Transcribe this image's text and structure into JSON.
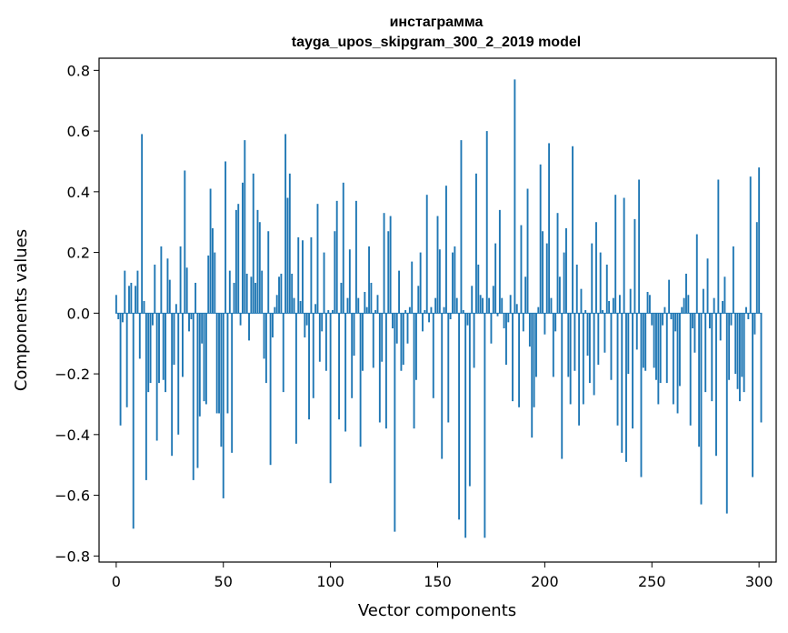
{
  "chart_data": {
    "type": "bar",
    "title": "инстаграмма",
    "subtitle": "tayga_upos_skipgram_300_2_2019 model",
    "xlabel": "Vector components",
    "ylabel": "Components values",
    "xlim": [
      -8,
      308
    ],
    "ylim": [
      -0.82,
      0.84
    ],
    "xticks": [
      0,
      50,
      100,
      150,
      200,
      250,
      300
    ],
    "xtick_labels": [
      "0",
      "50",
      "100",
      "150",
      "200",
      "250",
      "300"
    ],
    "yticks": [
      0.8,
      0.6,
      0.4,
      0.2,
      0.0,
      -0.2,
      -0.4,
      -0.6,
      -0.8
    ],
    "ytick_labels": [
      "0.8",
      "0.6",
      "0.4",
      "0.2",
      "0.0",
      "−0.2",
      "−0.4",
      "−0.6",
      "−0.8"
    ],
    "bar_color": "#1f77b4",
    "values": [
      0.06,
      -0.02,
      -0.37,
      -0.03,
      0.14,
      -0.31,
      0.09,
      0.1,
      -0.71,
      0.09,
      0.14,
      -0.15,
      0.59,
      0.04,
      -0.55,
      -0.26,
      -0.23,
      -0.04,
      0.16,
      -0.42,
      -0.23,
      0.22,
      -0.22,
      -0.26,
      0.18,
      0.11,
      -0.47,
      -0.17,
      0.03,
      -0.4,
      0.22,
      -0.21,
      0.47,
      0.15,
      -0.06,
      -0.02,
      -0.55,
      0.1,
      -0.51,
      -0.34,
      -0.1,
      -0.29,
      -0.3,
      0.19,
      0.41,
      0.28,
      0.2,
      -0.33,
      -0.33,
      -0.44,
      -0.61,
      0.5,
      -0.33,
      0.14,
      -0.46,
      0.1,
      0.34,
      0.36,
      -0.04,
      0.43,
      0.57,
      0.13,
      -0.09,
      0.12,
      0.46,
      0.1,
      0.34,
      0.3,
      0.14,
      -0.15,
      -0.23,
      0.27,
      -0.5,
      -0.08,
      0.02,
      0.06,
      0.12,
      0.13,
      -0.26,
      0.59,
      0.38,
      0.46,
      0.13,
      0.05,
      -0.43,
      0.25,
      0.04,
      0.24,
      -0.08,
      -0.04,
      -0.35,
      0.25,
      -0.28,
      0.03,
      0.36,
      -0.16,
      -0.06,
      0.2,
      -0.19,
      0.01,
      -0.56,
      0.01,
      0.27,
      0.37,
      -0.35,
      0.1,
      0.43,
      -0.39,
      0.05,
      0.21,
      -0.28,
      -0.14,
      0.37,
      0.05,
      -0.44,
      -0.19,
      0.07,
      0.02,
      0.22,
      0.1,
      -0.18,
      0.01,
      0.06,
      -0.36,
      -0.16,
      0.33,
      -0.38,
      0.27,
      0.32,
      -0.05,
      -0.72,
      -0.1,
      0.14,
      -0.19,
      -0.17,
      0.01,
      -0.1,
      0.02,
      0.17,
      -0.38,
      -0.22,
      0.09,
      0.2,
      -0.06,
      0.01,
      0.39,
      -0.03,
      0.02,
      -0.28,
      0.05,
      0.32,
      0.21,
      -0.48,
      0.02,
      0.42,
      -0.36,
      -0.02,
      0.2,
      0.22,
      0.05,
      -0.68,
      0.57,
      0.01,
      -0.74,
      -0.04,
      -0.57,
      0.09,
      -0.18,
      0.46,
      0.16,
      0.06,
      0.05,
      -0.74,
      0.6,
      0.05,
      -0.1,
      0.09,
      0.23,
      -0.01,
      0.34,
      0.05,
      -0.05,
      -0.17,
      -0.03,
      0.06,
      -0.29,
      0.77,
      0.03,
      -0.31,
      0.29,
      -0.06,
      0.12,
      0.41,
      -0.11,
      -0.41,
      -0.31,
      -0.21,
      0.02,
      0.49,
      0.27,
      -0.07,
      0.23,
      0.56,
      0.05,
      -0.21,
      -0.06,
      0.33,
      0.12,
      -0.48,
      0.2,
      0.28,
      -0.21,
      -0.3,
      0.55,
      -0.19,
      0.16,
      -0.37,
      0.08,
      -0.3,
      0.01,
      -0.14,
      -0.23,
      0.23,
      -0.27,
      0.3,
      -0.17,
      0.2,
      0.01,
      -0.13,
      0.16,
      0.04,
      -0.22,
      0.05,
      0.39,
      -0.37,
      0.06,
      -0.46,
      0.38,
      -0.49,
      -0.2,
      0.08,
      -0.38,
      0.31,
      -0.12,
      0.44,
      -0.54,
      -0.18,
      -0.19,
      0.07,
      0.06,
      -0.04,
      -0.18,
      -0.22,
      -0.3,
      -0.23,
      -0.04,
      0.02,
      -0.23,
      0.11,
      -0.02,
      -0.3,
      -0.06,
      -0.33,
      -0.24,
      0.02,
      0.05,
      0.13,
      0.06,
      -0.37,
      -0.05,
      -0.13,
      0.26,
      -0.44,
      -0.63,
      0.08,
      -0.26,
      0.18,
      -0.05,
      -0.29,
      0.05,
      -0.47,
      0.44,
      -0.09,
      0.04,
      0.12,
      -0.66,
      -0.22,
      -0.04,
      0.22,
      -0.2,
      -0.25,
      -0.29,
      -0.21,
      -0.26,
      0.02,
      -0.02,
      0.45,
      -0.54,
      -0.07,
      0.3,
      0.48,
      -0.36
    ]
  }
}
